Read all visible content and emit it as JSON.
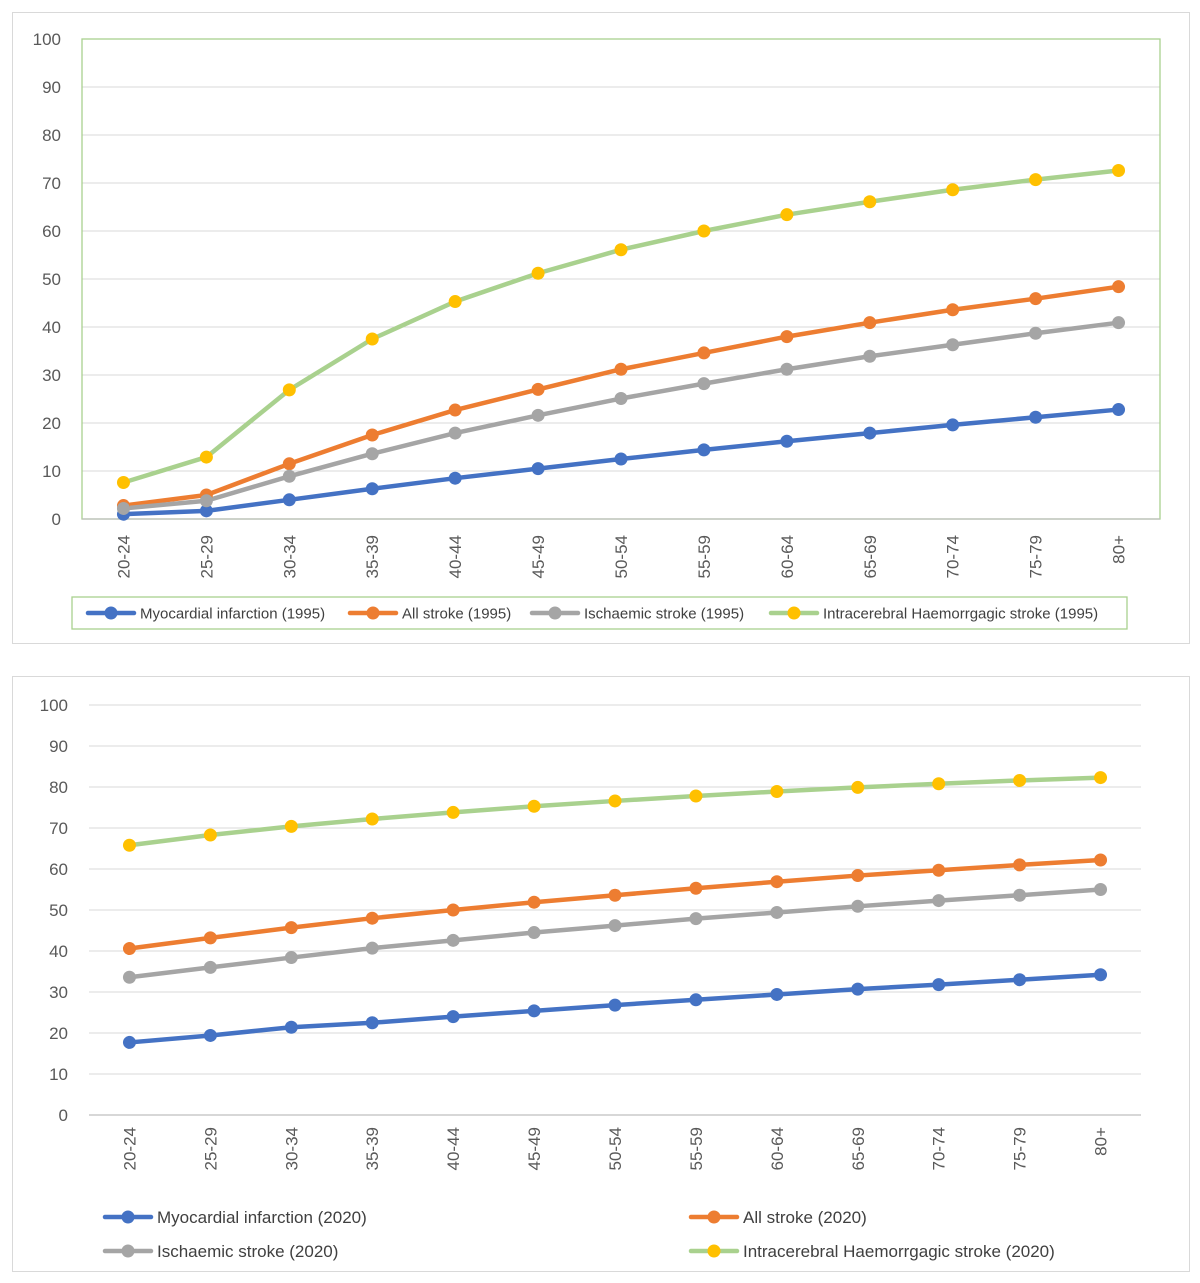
{
  "chart_data": [
    {
      "type": "line",
      "title": "",
      "xlabel": "",
      "ylabel": "",
      "ylim": [
        0,
        100
      ],
      "yticks": [
        0,
        10,
        20,
        30,
        40,
        50,
        60,
        70,
        80,
        90,
        100
      ],
      "grid": true,
      "legend_position": "bottom",
      "categories": [
        "20-24",
        "25-29",
        "30-34",
        "35-39",
        "40-44",
        "45-49",
        "50-54",
        "55-59",
        "60-64",
        "65-69",
        "70-74",
        "75-79",
        "80+"
      ],
      "series": [
        {
          "name": "Myocardial infarction (1995)",
          "line_color": "#4472C4",
          "marker_color": "#4472C4",
          "values": [
            1.0,
            1.7,
            4.0,
            6.3,
            8.5,
            10.5,
            12.5,
            14.4,
            16.2,
            17.9,
            19.6,
            21.2,
            22.8
          ]
        },
        {
          "name": "All stroke (1995)",
          "line_color": "#ED7D31",
          "marker_color": "#ED7D31",
          "values": [
            2.8,
            5.0,
            11.5,
            17.5,
            22.7,
            27.0,
            31.2,
            34.6,
            38.0,
            40.9,
            43.6,
            45.9,
            48.4
          ]
        },
        {
          "name": "Ischaemic stroke (1995)",
          "line_color": "#A5A5A5",
          "marker_color": "#A5A5A5",
          "values": [
            2.2,
            3.8,
            8.9,
            13.6,
            17.9,
            21.6,
            25.1,
            28.2,
            31.2,
            33.9,
            36.3,
            38.7,
            40.9
          ]
        },
        {
          "name": "Intracerebral Haemorrgagic stroke (1995)",
          "line_color": "#A9D18E",
          "marker_color": "#FFC000",
          "values": [
            7.6,
            12.9,
            26.9,
            37.5,
            45.3,
            51.2,
            56.1,
            60.0,
            63.4,
            66.1,
            68.6,
            70.7,
            72.6
          ]
        }
      ]
    },
    {
      "type": "line",
      "title": "",
      "xlabel": "",
      "ylabel": "",
      "ylim": [
        0,
        100
      ],
      "yticks": [
        0,
        10,
        20,
        30,
        40,
        50,
        60,
        70,
        80,
        90,
        100
      ],
      "grid": true,
      "legend_position": "bottom",
      "categories": [
        "20-24",
        "25-29",
        "30-34",
        "35-39",
        "40-44",
        "45-49",
        "50-54",
        "55-59",
        "60-64",
        "65-69",
        "70-74",
        "75-79",
        "80+"
      ],
      "series": [
        {
          "name": "Myocardial infarction (2020)",
          "line_color": "#4472C4",
          "marker_color": "#4472C4",
          "values": [
            17.7,
            19.4,
            21.4,
            22.5,
            24.0,
            25.4,
            26.8,
            28.1,
            29.4,
            30.7,
            31.8,
            33.0,
            34.2
          ]
        },
        {
          "name": "All stroke (2020)",
          "line_color": "#ED7D31",
          "marker_color": "#ED7D31",
          "values": [
            40.6,
            43.2,
            45.7,
            48.0,
            50.0,
            51.9,
            53.6,
            55.3,
            56.9,
            58.4,
            59.7,
            61.0,
            62.2
          ]
        },
        {
          "name": "Ischaemic stroke (2020)",
          "line_color": "#A5A5A5",
          "marker_color": "#A5A5A5",
          "values": [
            33.6,
            36.0,
            38.4,
            40.7,
            42.6,
            44.5,
            46.2,
            47.9,
            49.4,
            50.9,
            52.3,
            53.6,
            55.0
          ]
        },
        {
          "name": "Intracerebral Haemorrgagic stroke (2020)",
          "line_color": "#A9D18E",
          "marker_color": "#FFC000",
          "values": [
            65.8,
            68.3,
            70.4,
            72.2,
            73.8,
            75.3,
            76.6,
            77.8,
            78.9,
            79.9,
            80.8,
            81.6,
            82.3
          ]
        }
      ]
    }
  ]
}
